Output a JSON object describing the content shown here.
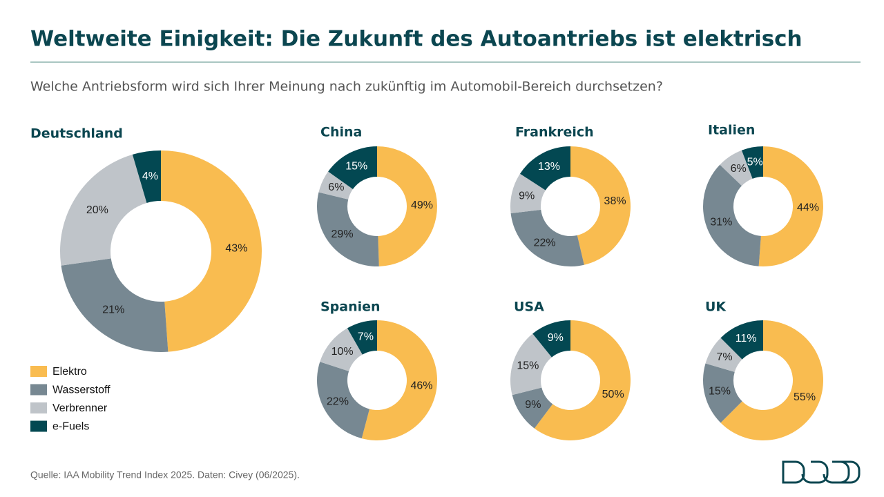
{
  "title": "Weltweite Einigkeit: Die Zukunft des Autoantriebs ist elektrisch",
  "subtitle": "Welche Antriebsform wird sich Ihrer Meinung nach zukünftig im Automobil-Bereich durchsetzen?",
  "source": "Quelle: IAA Mobility Trend Index 2025. Daten: Civey (06/2025).",
  "categories": [
    "Elektro",
    "Wasserstoff",
    "Verbrenner",
    "e-Fuels"
  ],
  "colors": [
    "#f9bc50",
    "#778892",
    "#bfc4c9",
    "#034852"
  ],
  "chart_data": [
    {
      "type": "donut",
      "title": "Deutschland",
      "values": [
        43,
        21,
        20,
        4
      ],
      "value_labels": [
        "43%",
        "21%",
        "20%",
        "4%"
      ]
    },
    {
      "type": "donut",
      "title": "China",
      "values": [
        49,
        29,
        6,
        15
      ],
      "value_labels": [
        "49%",
        "29%",
        "6%",
        "15%"
      ]
    },
    {
      "type": "donut",
      "title": "Frankreich",
      "values": [
        38,
        22,
        9,
        13
      ],
      "value_labels": [
        "38%",
        "22%",
        "9%",
        "13%"
      ]
    },
    {
      "type": "donut",
      "title": "Italien",
      "values": [
        44,
        31,
        6,
        5
      ],
      "value_labels": [
        "44%",
        "31%",
        "6%",
        "5%"
      ]
    },
    {
      "type": "donut",
      "title": "Spanien",
      "values": [
        46,
        22,
        10,
        7
      ],
      "value_labels": [
        "46%",
        "22%",
        "10%",
        "7%"
      ]
    },
    {
      "type": "donut",
      "title": "USA",
      "values": [
        50,
        9,
        15,
        9
      ],
      "value_labels": [
        "50%",
        "9%",
        "15%",
        "9%"
      ]
    },
    {
      "type": "donut",
      "title": "UK",
      "values": [
        55,
        15,
        7,
        11
      ],
      "value_labels": [
        "55%",
        "15%",
        "7%",
        "11%"
      ]
    }
  ]
}
